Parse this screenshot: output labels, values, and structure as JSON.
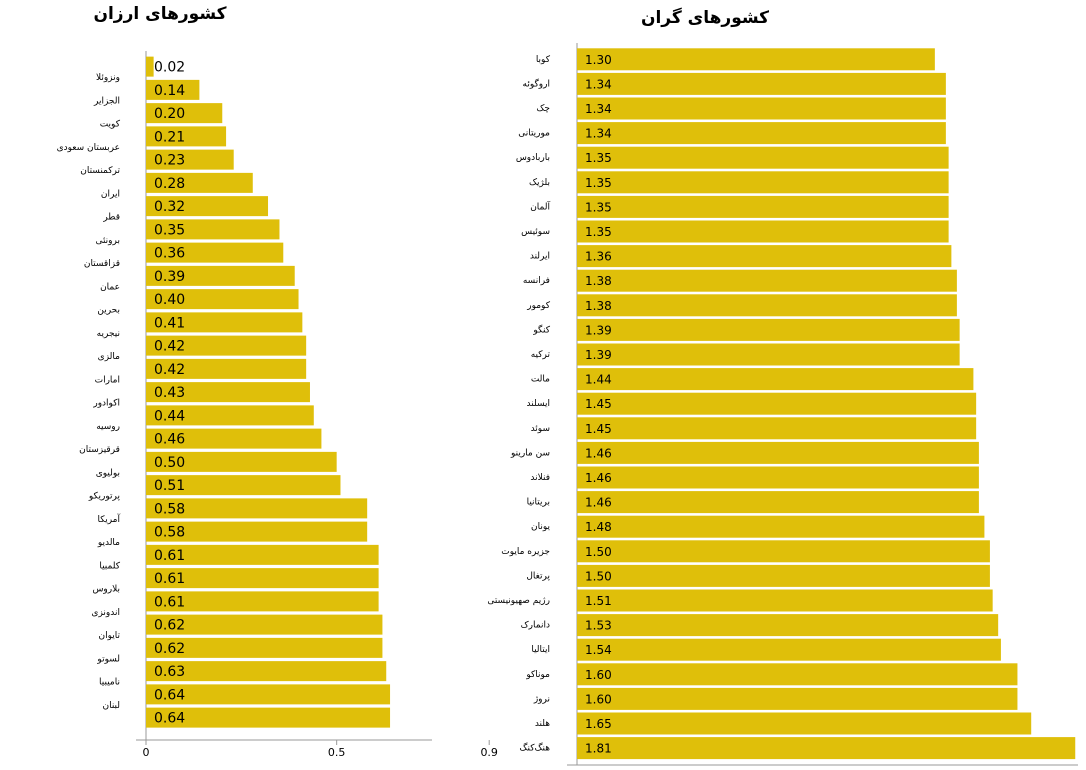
{
  "chart_data": [
    {
      "type": "bar",
      "orientation": "horizontal",
      "title": "کشورهای ارزان",
      "color": "#dfbf0a",
      "categories": [
        "ونزوئلا",
        "الجزایر",
        "کویت",
        "عربستان سعودی",
        "ترکمنستان",
        "ایران",
        "قطر",
        "برونئی",
        "قزاقستان",
        "عمان",
        "بحرین",
        "نیجریه",
        "مالزی",
        "امارات",
        "اکوادور",
        "روسیه",
        "قرقیزستان",
        "بولیوی",
        "پرتوریکو",
        "آمریکا",
        "مالدیو",
        "کلمبیا",
        "بلاروس",
        "اندونزی",
        "تایوان",
        "لسوتو",
        "نامیبیا",
        "لبنان",
        null
      ],
      "values": [
        0.02,
        0.14,
        0.2,
        0.21,
        0.23,
        0.28,
        0.32,
        0.35,
        0.36,
        0.39,
        0.4,
        0.41,
        0.42,
        0.42,
        0.43,
        0.44,
        0.46,
        0.5,
        0.51,
        0.58,
        0.58,
        0.61,
        0.61,
        0.61,
        0.62,
        0.62,
        0.63,
        0.64,
        0.64
      ],
      "value_labels": [
        "0.02",
        "0.14",
        "0.20",
        "0.21",
        "0.23",
        "0.28",
        "0.32",
        "0.35",
        "0.36",
        "0.39",
        "0.40",
        "0.41",
        "0.42",
        "0.42",
        "0.43",
        "0.44",
        "0.46",
        "0.50",
        "0.51",
        "0.58",
        "0.58",
        "0.61",
        "0.61",
        "0.61",
        "0.62",
        "0.62",
        "0.63",
        "0.64",
        "0.64"
      ],
      "xlim": [
        0,
        0.75
      ],
      "xticks": [
        0,
        0.5,
        0.9
      ]
    },
    {
      "type": "bar",
      "orientation": "horizontal",
      "title": "کشورهای گران",
      "color": "#dfbf0a",
      "categories": [
        "کوبا",
        "اروگوئه",
        "چک",
        "موریتانی",
        "باربادوس",
        "بلژیک",
        "آلمان",
        "سوئیس",
        "ایرلند",
        "فرانسه",
        "کومور",
        "کنگو",
        "ترکیه",
        "مالت",
        "ایسلند",
        "سوئد",
        "سن مارینو",
        "فنلاند",
        "بریتانیا",
        "یونان",
        "جزیره مایوت",
        "پرتغال",
        "رژیم صهیونیستی",
        "دانمارک",
        "ایتالیا",
        "موناکو",
        "نروژ",
        "هلند",
        "هنگ‌کنگ"
      ],
      "values": [
        1.3,
        1.34,
        1.34,
        1.34,
        1.35,
        1.35,
        1.35,
        1.35,
        1.36,
        1.38,
        1.38,
        1.39,
        1.39,
        1.44,
        1.45,
        1.45,
        1.46,
        1.46,
        1.46,
        1.48,
        1.5,
        1.5,
        1.51,
        1.53,
        1.54,
        1.6,
        1.6,
        1.65,
        1.81
      ],
      "value_labels": [
        "1.30",
        "1.34",
        "1.34",
        "1.34",
        "1.35",
        "1.35",
        "1.35",
        "1.35",
        "1.36",
        "1.38",
        "1.38",
        "1.39",
        "1.39",
        "1.44",
        "1.45",
        "1.45",
        "1.46",
        "1.46",
        "1.46",
        "1.48",
        "1.50",
        "1.50",
        "1.51",
        "1.53",
        "1.54",
        "1.60",
        "1.60",
        "1.65",
        "1.81"
      ],
      "xlim": [
        0,
        1.82
      ]
    }
  ]
}
